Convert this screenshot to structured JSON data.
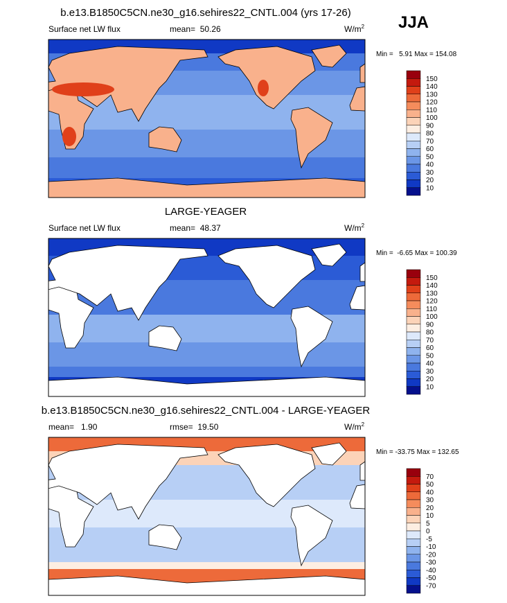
{
  "season": "JJA",
  "colorbar_colors": [
    "#99000d",
    "#c41a0e",
    "#e0401a",
    "#ed6a3a",
    "#f58c5c",
    "#f9b18c",
    "#fcd3b8",
    "#fdeee2",
    "#dde9fb",
    "#b7cff5",
    "#8fb3ee",
    "#6b96e6",
    "#4a79de",
    "#2b5bd6",
    "#1039c4",
    "#05108c"
  ],
  "panels": [
    {
      "title": "b.e13.B1850C5CN.ne30_g16.sehires22_CNTL.004 (yrs 17-26)",
      "left": "Surface net LW flux",
      "center": "mean=  50.26",
      "units": "W/m",
      "units_sup": "2",
      "min_max": "Min =   5.91 Max = 154.08",
      "colorbar_labels": [
        150,
        140,
        130,
        120,
        110,
        100,
        90,
        80,
        70,
        60,
        50,
        40,
        30,
        20,
        10
      ]
    },
    {
      "title": "LARGE-YEAGER",
      "left": "Surface net LW flux",
      "center": "mean=  48.37",
      "units": "W/m",
      "units_sup": "2",
      "min_max": "Min =  -6.65 Max = 100.39",
      "colorbar_labels": [
        150,
        140,
        130,
        120,
        110,
        100,
        90,
        80,
        70,
        60,
        50,
        40,
        30,
        20,
        10
      ]
    },
    {
      "title": "b.e13.B1850C5CN.ne30_g16.sehires22_CNTL.004 - LARGE-YEAGER",
      "left": "mean=   1.90",
      "center": "rmse=  19.50",
      "units": "W/m",
      "units_sup": "2",
      "min_max": "Min = -33.75 Max = 132.65",
      "colorbar_labels": [
        70,
        50,
        40,
        30,
        20,
        10,
        5,
        0,
        -5,
        -10,
        -20,
        -30,
        -40,
        -50,
        -70
      ]
    }
  ]
}
